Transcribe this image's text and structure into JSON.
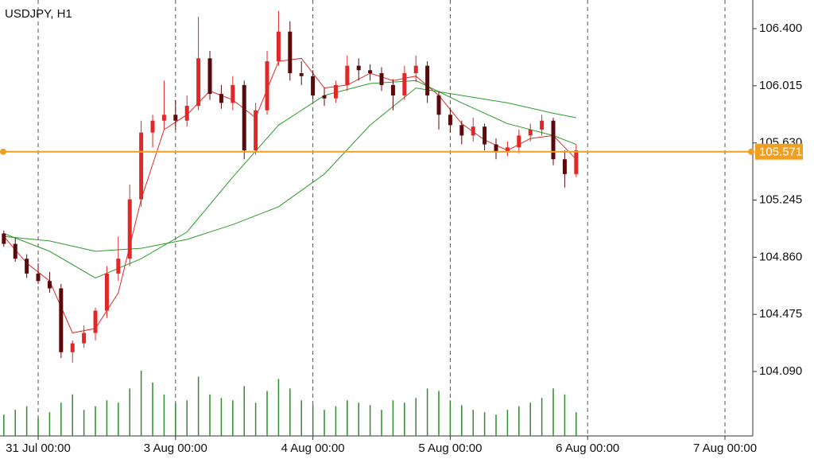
{
  "chart_data": {
    "type": "candlestick",
    "title": "USDJPY, H1",
    "up_color": "#e02828",
    "down_color": "#5a0a0a",
    "x": [
      -6,
      -4,
      -2,
      0,
      2,
      4,
      6,
      8,
      10,
      12,
      14,
      16,
      18,
      20,
      22,
      24,
      26,
      28,
      30,
      32,
      34,
      36,
      38,
      40,
      42,
      44,
      46,
      48,
      50,
      52,
      54,
      56,
      58,
      60,
      62,
      64,
      66,
      68,
      70,
      72,
      74,
      76,
      78,
      80,
      82,
      84,
      86,
      88,
      90,
      92,
      94
    ],
    "open": [
      105.02,
      104.95,
      104.85,
      104.75,
      104.7,
      104.65,
      104.22,
      104.28,
      104.35,
      104.5,
      104.75,
      104.85,
      105.25,
      105.7,
      105.78,
      105.82,
      105.78,
      105.88,
      106.2,
      105.96,
      105.9,
      106.02,
      105.58,
      105.85,
      106.18,
      106.38,
      106.1,
      106.08,
      105.95,
      105.93,
      106.02,
      106.15,
      106.12,
      106.1,
      106.02,
      105.95,
      106.1,
      106.15,
      105.95,
      105.82,
      105.75,
      105.68,
      105.74,
      105.62,
      105.57,
      105.6,
      105.68,
      105.72,
      105.78,
      105.52,
      105.42
    ],
    "high": [
      105.04,
      104.99,
      104.88,
      104.82,
      104.76,
      104.68,
      104.3,
      104.4,
      104.52,
      104.8,
      105.0,
      105.35,
      105.78,
      105.82,
      106.05,
      105.92,
      105.95,
      106.48,
      106.25,
      106.02,
      106.08,
      106.05,
      105.9,
      106.25,
      106.52,
      106.45,
      106.18,
      106.12,
      106.0,
      106.05,
      106.22,
      106.2,
      106.16,
      106.14,
      106.06,
      106.15,
      106.22,
      106.18,
      105.98,
      105.86,
      105.78,
      105.8,
      105.76,
      105.66,
      105.64,
      105.72,
      105.76,
      105.82,
      105.8,
      105.58,
      105.62
    ],
    "low": [
      104.93,
      104.83,
      104.72,
      104.68,
      104.62,
      104.18,
      104.15,
      104.25,
      104.3,
      104.45,
      104.7,
      104.8,
      105.2,
      105.6,
      105.72,
      105.72,
      105.74,
      105.85,
      105.92,
      105.86,
      105.85,
      105.52,
      105.55,
      105.82,
      106.15,
      106.05,
      106.02,
      105.92,
      105.88,
      105.9,
      105.98,
      106.05,
      106.05,
      105.98,
      105.85,
      105.92,
      106.04,
      105.9,
      105.72,
      105.7,
      105.62,
      105.64,
      105.58,
      105.52,
      105.54,
      105.56,
      105.64,
      105.68,
      105.48,
      105.33,
      105.4
    ],
    "close": [
      104.95,
      104.85,
      104.75,
      104.7,
      104.65,
      104.22,
      104.28,
      104.35,
      104.5,
      104.75,
      104.85,
      105.25,
      105.7,
      105.78,
      105.82,
      105.78,
      105.88,
      106.2,
      105.96,
      105.9,
      106.02,
      105.58,
      105.85,
      106.18,
      106.38,
      106.1,
      106.08,
      105.95,
      105.93,
      106.02,
      106.15,
      106.12,
      106.1,
      106.02,
      105.95,
      106.1,
      106.15,
      105.95,
      105.82,
      105.75,
      105.68,
      105.74,
      105.62,
      105.57,
      105.6,
      105.68,
      105.72,
      105.78,
      105.52,
      105.42,
      105.58
    ],
    "volume": [
      18,
      22,
      25,
      15,
      20,
      28,
      35,
      22,
      25,
      30,
      28,
      40,
      55,
      45,
      35,
      28,
      30,
      50,
      35,
      32,
      30,
      42,
      28,
      38,
      48,
      40,
      30,
      26,
      22,
      25,
      30,
      28,
      26,
      22,
      30,
      28,
      32,
      40,
      38,
      30,
      26,
      22,
      20,
      18,
      22,
      25,
      28,
      32,
      40,
      35,
      20
    ],
    "volume_color": "#2e8b2e",
    "lines": [
      {
        "color": "#e02828",
        "x": [
          -6,
          -2,
          2,
          6,
          10,
          14,
          18,
          22,
          26,
          30,
          34,
          38,
          42,
          46,
          50,
          54,
          58,
          62,
          66,
          70,
          74,
          78,
          82,
          86,
          90,
          94
        ],
        "values": [
          105.0,
          104.82,
          104.7,
          104.35,
          104.38,
          104.62,
          105.25,
          105.72,
          105.82,
          105.98,
          105.92,
          105.8,
          106.18,
          106.2,
          106.0,
          106.02,
          106.1,
          106.05,
          106.08,
          105.95,
          105.76,
          105.65,
          105.58,
          105.66,
          105.68,
          105.52
        ]
      },
      {
        "color": "#2e9a2e",
        "x": [
          -6,
          2,
          10,
          18,
          26,
          34,
          42,
          50,
          58,
          66,
          74,
          82,
          90,
          94
        ],
        "values": [
          105.02,
          104.9,
          104.72,
          104.85,
          105.03,
          105.4,
          105.75,
          105.95,
          106.03,
          106.05,
          105.9,
          105.76,
          105.68,
          105.62
        ]
      },
      {
        "color": "#2e9a2e",
        "x": [
          -6,
          2,
          10,
          18,
          26,
          34,
          42,
          50,
          58,
          66,
          74,
          82,
          90,
          94
        ],
        "values": [
          105.0,
          104.97,
          104.9,
          104.92,
          104.98,
          105.08,
          105.2,
          105.42,
          105.75,
          106.0,
          105.95,
          105.9,
          105.83,
          105.8
        ]
      }
    ],
    "price_line": {
      "value": 105.571,
      "color": "#f0a020"
    },
    "xlim": [
      -6.67,
      124.86
    ],
    "ylim": [
      103.656,
      106.593
    ],
    "xticks": [
      {
        "value": 0,
        "label": "31 Jul 00:00"
      },
      {
        "value": 24,
        "label": "3 Aug 00:00"
      },
      {
        "value": 48,
        "label": "4 Aug 00:00"
      },
      {
        "value": 72,
        "label": "5 Aug 00:00"
      },
      {
        "value": 96,
        "label": "6 Aug 00:00"
      },
      {
        "value": 120,
        "label": "7 Aug 00:00"
      }
    ],
    "yticks": [
      {
        "value": 106.4,
        "label": "106.400"
      },
      106.015,
      {
        "value": 105.63,
        "label": "105.630"
      },
      105.245,
      {
        "value": 104.86,
        "label": "104.860"
      },
      104.475,
      {
        "value": 104.09,
        "label": "104.090"
      }
    ],
    "grid": true
  }
}
